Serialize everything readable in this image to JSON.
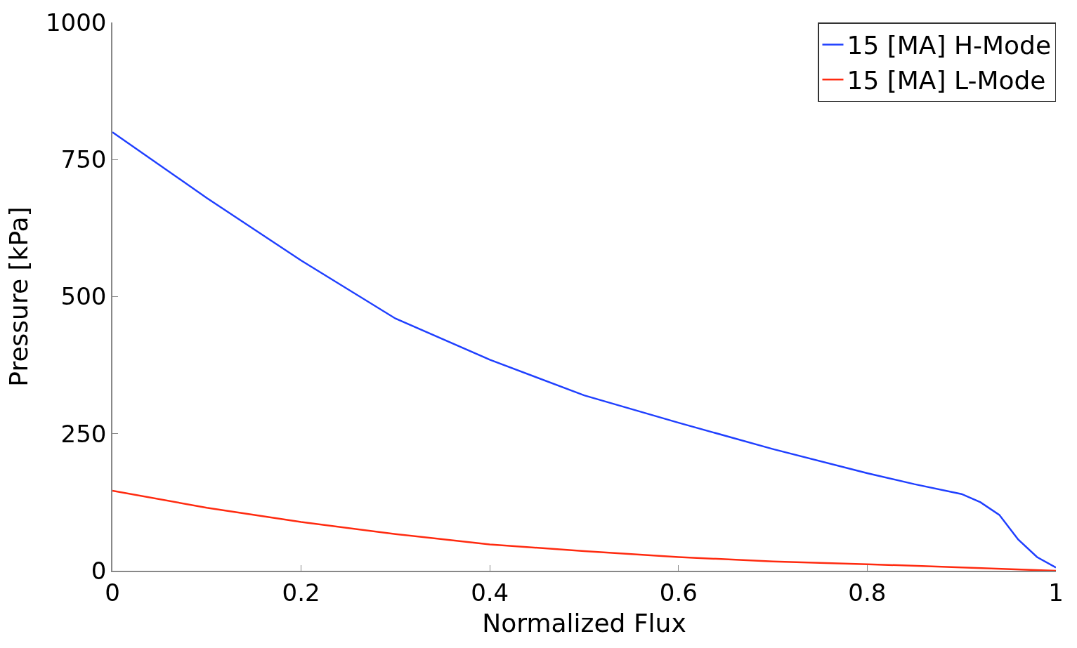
{
  "chart_data": {
    "type": "line",
    "xlabel": "Normalized Flux",
    "ylabel": "Pressure [kPa]",
    "xlim": [
      0,
      1
    ],
    "xticks": [
      0,
      0.2,
      0.4,
      0.6,
      0.8,
      1
    ],
    "ylim": [
      0,
      1000
    ],
    "yticks": [
      0,
      250,
      500,
      750,
      1000
    ],
    "grid": false,
    "legend": "top right",
    "marker": "none",
    "line_style": "solid",
    "x": [
      0,
      0.1,
      0.2,
      0.3,
      0.4,
      0.5,
      0.6,
      0.7,
      0.8,
      0.85,
      0.9,
      0.92,
      0.94,
      0.96,
      0.98,
      1
    ],
    "series": [
      {
        "name": "15 [MA] H-Mode",
        "color": "#1f3fff",
        "values": [
          800,
          680,
          566,
          460,
          385,
          320,
          270,
          222,
          178,
          158,
          140,
          125,
          102,
          57,
          25,
          6
        ]
      },
      {
        "name": "15 [MA] L-Mode",
        "color": "#ff2a0f",
        "x": [
          0,
          0.1,
          0.2,
          0.3,
          0.4,
          0.5,
          0.6,
          0.7,
          0.8,
          0.9,
          1
        ],
        "values": [
          146,
          115,
          89,
          67,
          48,
          36,
          25,
          17,
          12,
          6,
          0
        ]
      }
    ]
  }
}
